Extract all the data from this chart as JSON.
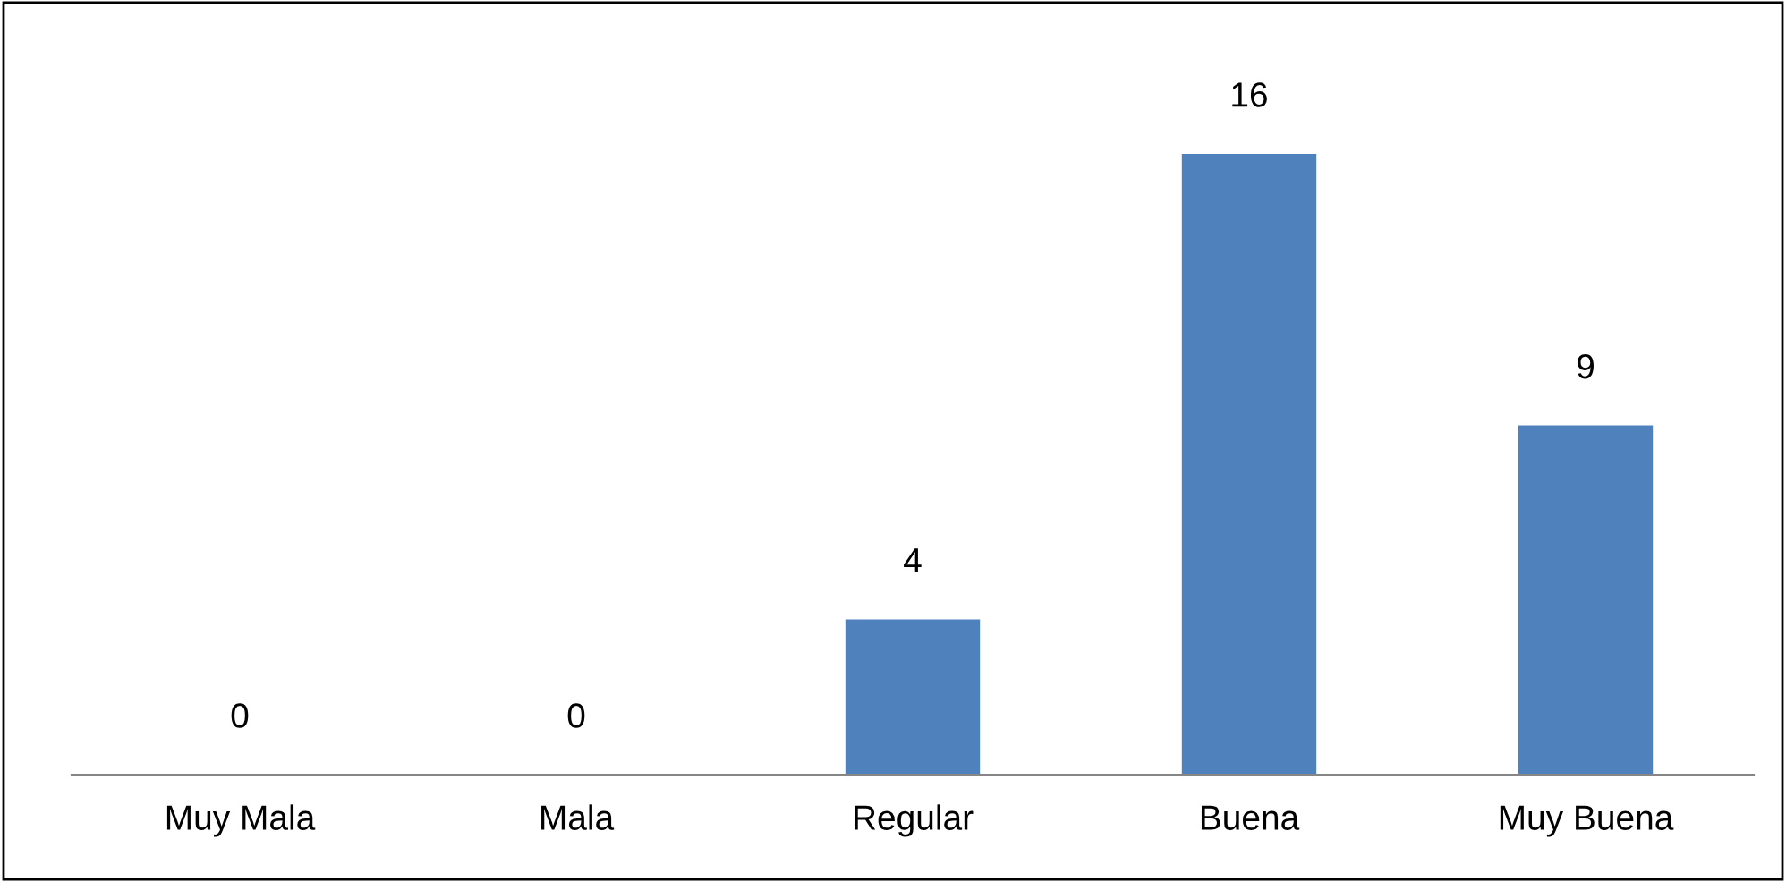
{
  "chart_data": {
    "type": "bar",
    "categories": [
      "Muy Mala",
      "Mala",
      "Regular",
      "Buena",
      "Muy Buena"
    ],
    "values": [
      0,
      0,
      4,
      16,
      9
    ],
    "color": "#4f81bd",
    "data_labels": true,
    "grid": false,
    "legend": false
  }
}
